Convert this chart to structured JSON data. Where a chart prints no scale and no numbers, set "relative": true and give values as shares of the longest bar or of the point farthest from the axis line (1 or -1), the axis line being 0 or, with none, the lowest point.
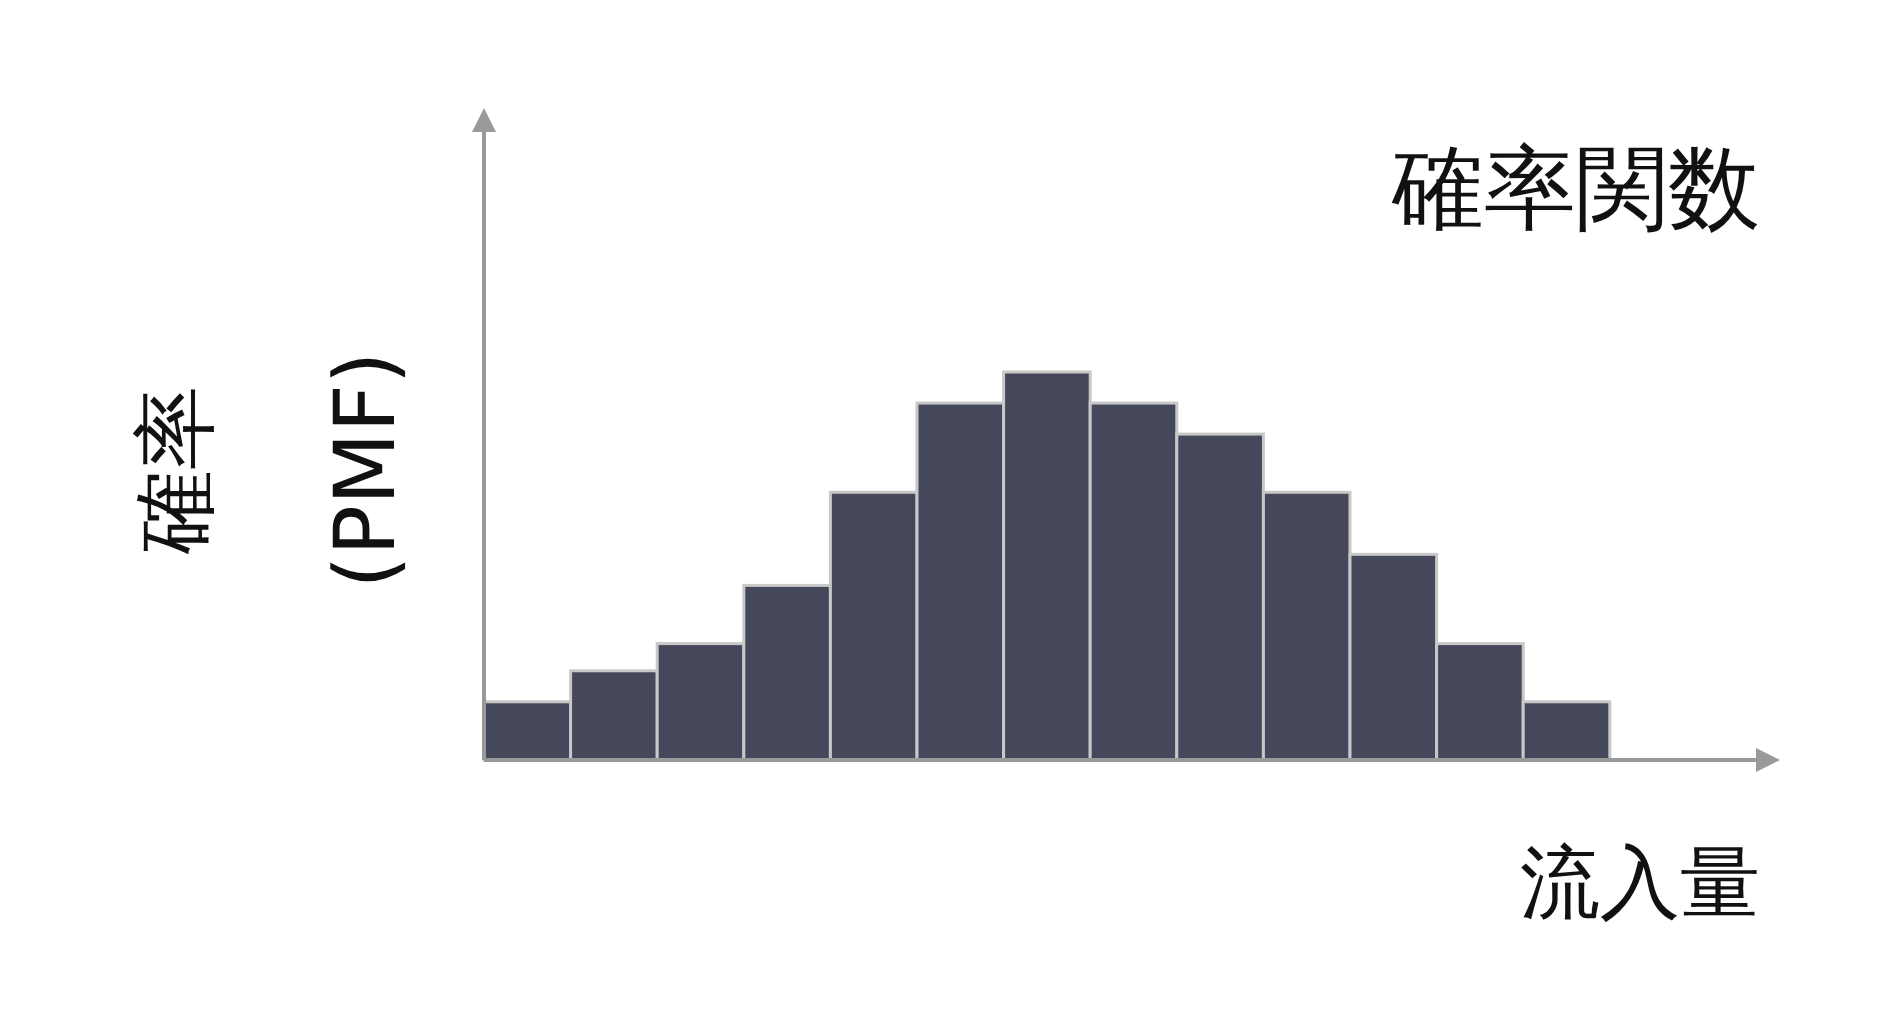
{
  "chart_data": {
    "type": "bar",
    "title": "確率関数",
    "xlabel": "流入量",
    "ylabel": "確率\n(PMF)",
    "relative": true,
    "color": "#45475a",
    "categories": [
      null,
      null,
      null,
      null,
      null,
      null,
      null,
      null,
      null,
      null,
      null,
      null,
      null
    ],
    "values": [
      0.15,
      0.23,
      0.3,
      0.45,
      0.69,
      0.92,
      1,
      0.92,
      0.84,
      0.69,
      0.53,
      0.3,
      0.15
    ]
  }
}
